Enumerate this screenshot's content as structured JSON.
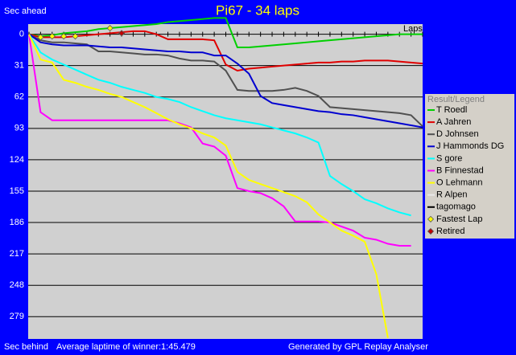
{
  "chart_data": {
    "type": "line",
    "title": "Pi67 - 34 laps",
    "y_label_top": "Sec ahead",
    "y_label_bottom": "Sec behind",
    "x_label": "Laps",
    "subtitle": "Average laptime of winner:1:45.479",
    "credit": "Generated by GPL Replay Analyser",
    "legend_title": "Result/Legend",
    "legend": "right",
    "grid": true,
    "y_inverted": true,
    "xlim": [
      0,
      34
    ],
    "xticks": [
      0,
      1,
      2,
      3,
      4,
      5,
      6,
      7,
      8,
      9,
      10,
      11,
      12,
      13,
      14,
      15,
      16,
      17,
      18,
      19,
      20,
      21,
      22,
      23,
      24,
      25,
      26,
      27,
      28,
      29,
      30,
      31,
      32,
      33,
      34
    ],
    "ylim": [
      -10,
      301
    ],
    "yticks": [
      0,
      31,
      62,
      93,
      124,
      155,
      186,
      217,
      248,
      279
    ],
    "x": [
      0,
      1,
      2,
      3,
      4,
      5,
      6,
      7,
      8,
      9,
      10,
      11,
      12,
      13,
      14,
      15,
      16,
      17,
      18,
      19,
      20,
      21,
      22,
      23,
      24,
      25,
      26,
      27,
      28,
      29,
      30,
      31,
      32,
      33,
      34
    ],
    "series": [
      {
        "name": "T Roedl",
        "color": "#00d000",
        "values": [
          0,
          2,
          1,
          -1,
          -2,
          -3,
          -5,
          -6,
          -7,
          -8,
          -9,
          -10,
          -12,
          -13,
          -14,
          -15,
          -16,
          -16,
          13,
          13,
          12,
          11,
          10,
          9,
          8,
          7,
          6,
          5,
          4,
          3,
          2,
          1,
          0,
          0,
          0
        ]
      },
      {
        "name": "A Jahren",
        "color": "#e00000",
        "values": [
          0,
          3,
          3,
          3,
          2,
          1,
          0,
          -1,
          -2,
          -3,
          -3,
          0,
          5,
          5,
          5,
          5,
          6,
          30,
          36,
          34,
          33,
          32,
          31,
          30,
          29,
          28,
          28,
          27,
          27,
          26,
          26,
          26,
          27,
          28,
          29
        ]
      },
      {
        "name": "D Johnsen",
        "color": "#505050",
        "values": [
          0,
          6,
          8,
          8,
          9,
          10,
          17,
          17,
          18,
          19,
          20,
          20,
          21,
          24,
          26,
          26,
          27,
          36,
          55,
          56,
          56,
          56,
          55,
          53,
          56,
          61,
          72,
          73,
          74,
          75,
          76,
          77,
          78,
          80,
          91
        ]
      },
      {
        "name": "J Hammonds DG",
        "color": "#0000d0",
        "values": [
          0,
          8,
          10,
          11,
          11,
          11,
          12,
          13,
          13,
          14,
          15,
          16,
          17,
          17,
          18,
          18,
          21,
          21,
          29,
          39,
          61,
          68,
          70,
          72,
          74,
          76,
          77,
          79,
          80,
          82,
          84,
          86,
          88,
          90,
          92
        ]
      },
      {
        "name": "S gore",
        "color": "#00ffff",
        "values": [
          0,
          18,
          25,
          30,
          35,
          40,
          45,
          48,
          52,
          55,
          58,
          62,
          64,
          67,
          72,
          76,
          80,
          83,
          85,
          87,
          89,
          92,
          95,
          98,
          102,
          107,
          140,
          148,
          155,
          163,
          167,
          172,
          176,
          179,
          null
        ]
      },
      {
        "name": "B Finnestad",
        "color": "#ff00ff",
        "values": [
          0,
          77,
          85,
          85,
          85,
          85,
          85,
          85,
          85,
          85,
          85,
          85,
          85,
          88,
          92,
          108,
          111,
          120,
          152,
          155,
          157,
          162,
          170,
          185,
          185,
          185,
          186,
          190,
          194,
          201,
          203,
          207,
          209,
          209,
          null
        ]
      },
      {
        "name": "O Lehmann",
        "color": "#ffff00",
        "values": [
          0,
          25,
          28,
          45,
          48,
          52,
          55,
          59,
          62,
          67,
          72,
          78,
          84,
          89,
          93,
          98,
          102,
          110,
          136,
          144,
          148,
          152,
          156,
          160,
          166,
          178,
          186,
          194,
          199,
          205,
          237,
          300,
          null,
          null,
          null
        ]
      },
      {
        "name": "R Alpen",
        "color": "#e8e8e8",
        "values": [
          null,
          null,
          null,
          null,
          null,
          null,
          null,
          null,
          null,
          null,
          null,
          null,
          null,
          null,
          null,
          null,
          null,
          null,
          null,
          null,
          null,
          null,
          null,
          null,
          null,
          null,
          null,
          null,
          null,
          null,
          null,
          null,
          null,
          null,
          null
        ]
      },
      {
        "name": "tagomago",
        "color": "#000000",
        "values": [
          null,
          null,
          null,
          null,
          null,
          null,
          null,
          null,
          null,
          null,
          null,
          null,
          null,
          null,
          null,
          null,
          null,
          null,
          null,
          null,
          null,
          null,
          null,
          null,
          null,
          null,
          null,
          null,
          null,
          null,
          null,
          null,
          null,
          null,
          null
        ]
      },
      {
        "name": "Fastest Lap",
        "color": "#ffff00",
        "marker": "diamond",
        "x": [
          1,
          2,
          3,
          4,
          7
        ],
        "values": [
          3,
          2,
          2,
          2,
          -6
        ]
      },
      {
        "name": "Retired",
        "color": "#c00000",
        "marker": "diamond",
        "x": [
          8
        ],
        "values": [
          -1
        ]
      }
    ]
  }
}
